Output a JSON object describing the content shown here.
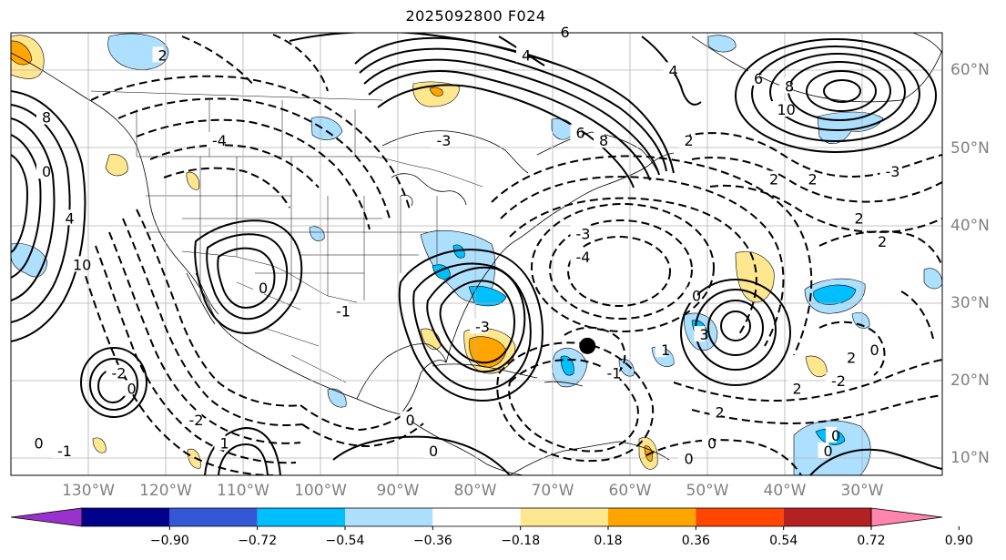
{
  "title": "2025092800 F024",
  "lon_labels": [
    {
      "text": "130°W",
      "lon": -130
    },
    {
      "text": "120°W",
      "lon": -120
    },
    {
      "text": "110°W",
      "lon": -110
    },
    {
      "text": "100°W",
      "lon": -100
    },
    {
      "text": "90°W",
      "lon": -90
    },
    {
      "text": "80°W",
      "lon": -80
    },
    {
      "text": "70°W",
      "lon": -70
    },
    {
      "text": "60°W",
      "lon": -60
    },
    {
      "text": "50°W",
      "lon": -50
    },
    {
      "text": "40°W",
      "lon": -40
    },
    {
      "text": "30°W",
      "lon": -30
    }
  ],
  "lat_labels": [
    {
      "text": "60°N",
      "lat": 60
    },
    {
      "text": "50°N",
      "lat": 50
    },
    {
      "text": "40°N",
      "lat": 40
    },
    {
      "text": "30°N",
      "lat": 30
    },
    {
      "text": "20°N",
      "lat": 20
    },
    {
      "text": "10°N",
      "lat": 10
    }
  ],
  "colorbar": {
    "ticks": [
      "−0.90",
      "−0.72",
      "−0.54",
      "−0.36",
      "−0.18",
      "0.18",
      "0.36",
      "0.54",
      "0.72",
      "0.90"
    ],
    "colors": [
      "#9932CC",
      "#00008B",
      "#3457D5",
      "#00BFFF",
      "#ADDFFF",
      "#FFFFFF",
      "#FFE78F",
      "#FFA500",
      "#FF4500",
      "#B22222",
      "#FF85AF"
    ]
  },
  "contour_labels": [
    {
      "text": "2",
      "lon": -121,
      "lat": 62
    },
    {
      "text": "6",
      "lon": -69,
      "lat": 65
    },
    {
      "text": "4",
      "lon": -74,
      "lat": 62
    },
    {
      "text": "4",
      "lon": -55,
      "lat": 60
    },
    {
      "text": "6",
      "lon": -44,
      "lat": 59
    },
    {
      "text": "8",
      "lon": -40,
      "lat": 58
    },
    {
      "text": "10",
      "lon": -41,
      "lat": 55
    },
    {
      "text": "8",
      "lon": -136,
      "lat": 54
    },
    {
      "text": "0",
      "lon": -136,
      "lat": 47
    },
    {
      "text": "4",
      "lon": -133,
      "lat": 41
    },
    {
      "text": "10",
      "lon": -132,
      "lat": 35
    },
    {
      "text": "-3",
      "lon": -85,
      "lat": 51
    },
    {
      "text": "-4",
      "lon": -114,
      "lat": 51
    },
    {
      "text": "6",
      "lon": -67,
      "lat": 52
    },
    {
      "text": "8",
      "lon": -64,
      "lat": 51
    },
    {
      "text": "2",
      "lon": -53,
      "lat": 51
    },
    {
      "text": "-3",
      "lon": -67,
      "lat": 39
    },
    {
      "text": "-4",
      "lon": -67,
      "lat": 36
    },
    {
      "text": "2",
      "lon": -42,
      "lat": 46
    },
    {
      "text": "2",
      "lon": -37,
      "lat": 46
    },
    {
      "text": "-3",
      "lon": -27,
      "lat": 47
    },
    {
      "text": "2",
      "lon": -31,
      "lat": 41
    },
    {
      "text": "2",
      "lon": -28,
      "lat": 38
    },
    {
      "text": "0",
      "lon": -52,
      "lat": 31
    },
    {
      "text": "3",
      "lon": -51,
      "lat": 26
    },
    {
      "text": "-3",
      "lon": -80,
      "lat": 27
    },
    {
      "text": "-1",
      "lon": -63,
      "lat": 21
    },
    {
      "text": "1",
      "lon": -56,
      "lat": 24
    },
    {
      "text": "2",
      "lon": -32,
      "lat": 23
    },
    {
      "text": "0",
      "lon": -29,
      "lat": 24
    },
    {
      "text": "2",
      "lon": -39,
      "lat": 19
    },
    {
      "text": "-2",
      "lon": -34,
      "lat": 20
    },
    {
      "text": "0",
      "lon": -34,
      "lat": 13
    },
    {
      "text": "0",
      "lon": -89,
      "lat": 15
    },
    {
      "text": "0",
      "lon": -125,
      "lat": 19
    },
    {
      "text": "-2",
      "lon": -127,
      "lat": 21
    },
    {
      "text": "0",
      "lon": -108,
      "lat": 32
    },
    {
      "text": "-1",
      "lon": -98,
      "lat": 29
    },
    {
      "text": "1",
      "lon": -113,
      "lat": 12
    },
    {
      "text": "0",
      "lon": -86,
      "lat": 11
    },
    {
      "text": "0",
      "lon": -50,
      "lat": 12
    },
    {
      "text": "0",
      "lon": -53,
      "lat": 10
    },
    {
      "text": "2",
      "lon": -49,
      "lat": 16
    },
    {
      "text": "-2",
      "lon": -117,
      "lat": 15
    },
    {
      "text": "-1",
      "lon": -134,
      "lat": 11
    },
    {
      "text": "0",
      "lon": -137,
      "lat": 12
    },
    {
      "text": "0",
      "lon": -35,
      "lat": 11
    }
  ],
  "storm_marker": {
    "lon": -65.5,
    "lat": 24.5
  }
}
